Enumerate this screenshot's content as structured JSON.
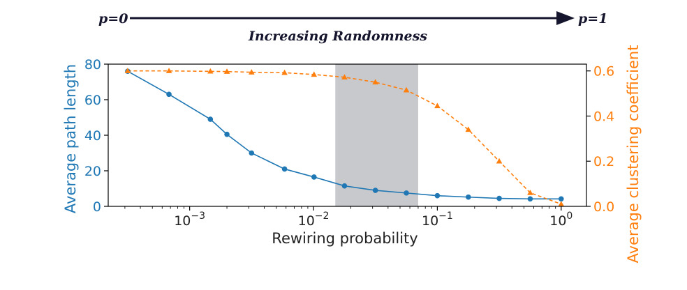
{
  "banner": {
    "left_label": "p=0",
    "right_label": "p=1",
    "caption": "Increasing Randomness"
  },
  "colors": {
    "path_length": "#1f77b4",
    "clustering": "#ff7f0e",
    "shade": "#c8c9cc",
    "arrow": "#15152e"
  },
  "chart_data": {
    "type": "line",
    "xlabel": "Rewiring probability",
    "xscale": "log",
    "xlim": [
      0.00022,
      1.6
    ],
    "x_ticks": [
      {
        "value": 0.001,
        "base": "10",
        "exp": "−3"
      },
      {
        "value": 0.01,
        "base": "10",
        "exp": "−2"
      },
      {
        "value": 0.1,
        "base": "10",
        "exp": "−1"
      },
      {
        "value": 1,
        "base": "10",
        "exp": "0"
      }
    ],
    "shaded_region": [
      0.015,
      0.07
    ],
    "left_axis": {
      "label": "Average path length",
      "ylim": [
        0,
        80
      ],
      "ticks": [
        "0",
        "20",
        "40",
        "60",
        "80"
      ]
    },
    "right_axis": {
      "label": "Average clustering coefficient",
      "ylim": [
        0,
        0.63
      ],
      "ticks": [
        "0.0",
        "0.2",
        "0.4",
        "0.6"
      ]
    },
    "series": [
      {
        "axis": "left",
        "marker": "circle",
        "line": "solid",
        "x": [
          0.000316,
          0.000681,
          0.00147,
          0.002,
          0.00316,
          0.00584,
          0.0101,
          0.0178,
          0.0316,
          0.0562,
          0.1,
          0.178,
          0.316,
          0.562,
          1.0
        ],
        "y": [
          76,
          63,
          49,
          40.5,
          30,
          21,
          16.5,
          11.5,
          9,
          7.5,
          6,
          5.2,
          4.5,
          4.2,
          4.2
        ]
      },
      {
        "axis": "right",
        "marker": "triangle",
        "line": "dashed",
        "x": [
          0.000316,
          0.000681,
          0.00147,
          0.002,
          0.00316,
          0.00584,
          0.0101,
          0.0178,
          0.0316,
          0.0562,
          0.1,
          0.178,
          0.316,
          0.562,
          1.0
        ],
        "y": [
          0.6,
          0.6,
          0.598,
          0.597,
          0.594,
          0.592,
          0.584,
          0.572,
          0.55,
          0.515,
          0.445,
          0.34,
          0.2,
          0.06,
          0.01
        ]
      }
    ]
  }
}
